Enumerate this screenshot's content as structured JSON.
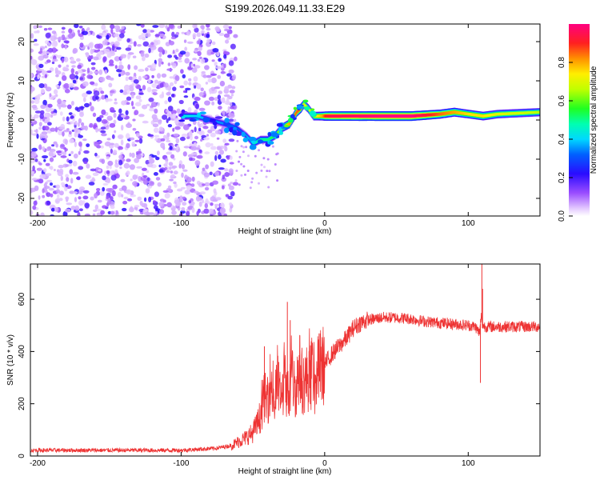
{
  "figure_title": "S199.2026.049.11.33.E29",
  "chart_data": [
    {
      "type": "heatmap",
      "title": "S199.2026.049.11.33.E29",
      "xlabel": "Height of straight line (km)",
      "ylabel": "Frequency (Hz)",
      "xlim": [
        -205,
        150
      ],
      "ylim": [
        -24.5,
        24.5
      ],
      "xticks": [
        -200,
        -100,
        0,
        100
      ],
      "yticks": [
        -20,
        -10,
        0,
        10,
        20
      ],
      "colorbar": {
        "label": "Normalized spectral amplitude",
        "range": [
          0.0,
          1.0
        ],
        "ticks": [
          "0.0",
          "0.2",
          "0.4",
          "0.6",
          "0.8"
        ],
        "colormap": "rainbow"
      },
      "noise_region_x": [
        -205,
        -62
      ],
      "ridge": {
        "x": [
          -100,
          -90,
          -80,
          -70,
          -62,
          -55,
          -50,
          -45,
          -40,
          -35,
          -30,
          -25,
          -20,
          -17,
          -15,
          -12,
          -8,
          -5,
          -2,
          0,
          5,
          10,
          20,
          40,
          60,
          80,
          90,
          100,
          110,
          120,
          150
        ],
        "freq": [
          1,
          1,
          0,
          -1,
          -2,
          -4,
          -6,
          -5,
          -5,
          -4,
          -2,
          -1,
          2,
          3,
          4,
          3,
          1,
          1,
          1,
          1,
          1,
          1,
          1,
          1,
          1,
          1.5,
          2,
          1.5,
          1,
          1.5,
          2
        ],
        "amplitude": [
          0.45,
          0.4,
          0.35,
          0.35,
          0.3,
          0.35,
          0.45,
          0.5,
          0.5,
          0.55,
          0.7,
          0.8,
          0.85,
          0.85,
          0.7,
          0.7,
          0.75,
          0.75,
          0.8,
          0.9,
          0.95,
          0.95,
          0.97,
          1.0,
          1.0,
          0.85,
          0.8,
          0.75,
          0.75,
          0.7,
          0.65
        ]
      }
    },
    {
      "type": "line",
      "title": "",
      "xlabel": "Height of straight line (km)",
      "ylabel": "SNR (10 * v/v)",
      "xlim": [
        -205,
        150
      ],
      "ylim": [
        0,
        735
      ],
      "xticks": [
        -200,
        -100,
        0,
        100
      ],
      "yticks": [
        0,
        200,
        400,
        600
      ],
      "color": "#ee3333",
      "series": [
        {
          "name": "SNR",
          "x": [
            -205,
            -150,
            -100,
            -90,
            -75,
            -65,
            -60,
            -55,
            -50,
            -47,
            -45,
            -42,
            -40,
            -38,
            -36,
            -35,
            -33,
            -31,
            -30,
            -28,
            -26,
            -25,
            -23,
            -21,
            -20,
            -18,
            -15,
            -12,
            -10,
            -8,
            -6,
            -5,
            -3,
            0,
            5,
            10,
            15,
            20,
            25,
            30,
            40,
            50,
            60,
            70,
            80,
            90,
            100,
            105,
            108,
            109,
            110,
            112,
            120,
            130,
            140,
            150
          ],
          "y": [
            22,
            22,
            22,
            25,
            30,
            40,
            55,
            70,
            90,
            120,
            150,
            230,
            200,
            280,
            250,
            180,
            300,
            230,
            210,
            320,
            240,
            230,
            300,
            270,
            250,
            340,
            280,
            300,
            310,
            330,
            240,
            320,
            340,
            350,
            390,
            420,
            450,
            490,
            510,
            520,
            530,
            530,
            525,
            515,
            510,
            505,
            500,
            495,
            470,
            540,
            500,
            495,
            495,
            495,
            495,
            495
          ]
        }
      ],
      "spikes": [
        {
          "x": -42,
          "y": 420
        },
        {
          "x": -32,
          "y": 360
        },
        {
          "x": -26,
          "y": 590
        },
        {
          "x": -24,
          "y": 520
        },
        {
          "x": 108.5,
          "y": 280
        },
        {
          "x": 109.5,
          "y": 735
        },
        {
          "x": 110,
          "y": 640
        }
      ]
    }
  ]
}
